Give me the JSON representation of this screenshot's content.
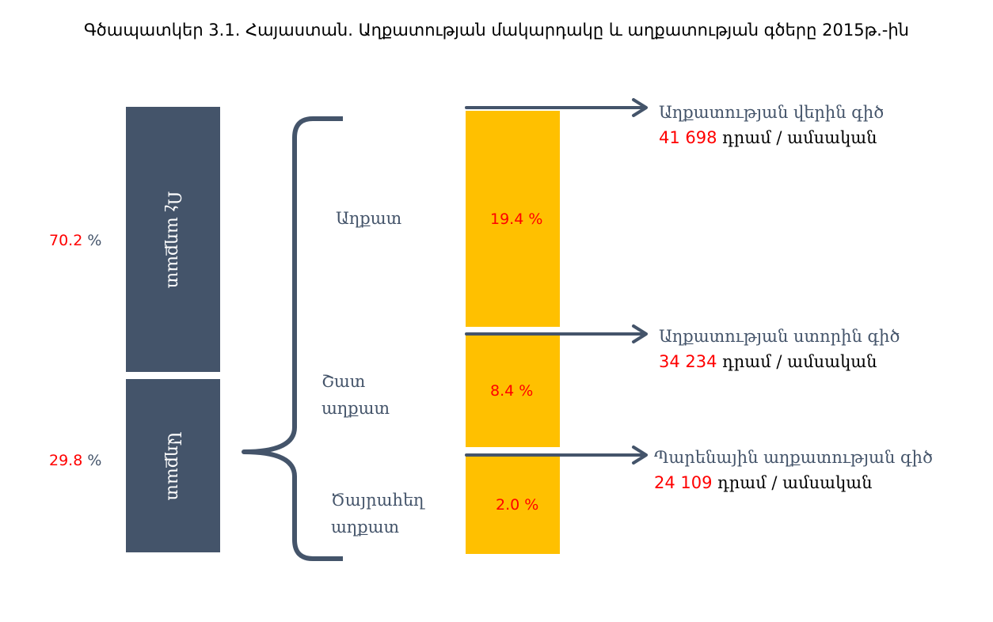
{
  "title": "Գծապատկեր 3.1. Հայաստան. Աղքատության մակարդակը և աղքատության գծերը 2015թ.-ին",
  "left_bars": {
    "non_poor": {
      "label": "Ոչ աղքատ",
      "percent": "70.2",
      "percent_sign": "%"
    },
    "poor": {
      "label": "Աղքատ",
      "percent": "29.8",
      "percent_sign": "%"
    }
  },
  "categories": {
    "poor": "Աղքատ",
    "very_poor_line1": "Շատ",
    "very_poor_line2": "աղքատ",
    "extreme_line1": "Ծայրահեղ",
    "extreme_line2": "աղքատ"
  },
  "right_bars": {
    "poor": "19.4  %",
    "very_poor": "8.4  %",
    "extreme": "2.0 %"
  },
  "lines": {
    "upper": {
      "name": "Աղքատության վերին գիծ",
      "amount": "41 698",
      "unit": "դրամ / ամսական"
    },
    "lower": {
      "name": "Աղքատության ստորին գիծ",
      "amount": "34 234",
      "unit": "դրամ / ամսական"
    },
    "food": {
      "name": "Պարենային աղքատության գիծ",
      "amount": "24 109",
      "unit": "դրամ / ամսական"
    }
  },
  "colors": {
    "dark_bar": "#44546a",
    "yellow_bar": "#ffc000",
    "highlight_text": "#ff0000"
  }
}
